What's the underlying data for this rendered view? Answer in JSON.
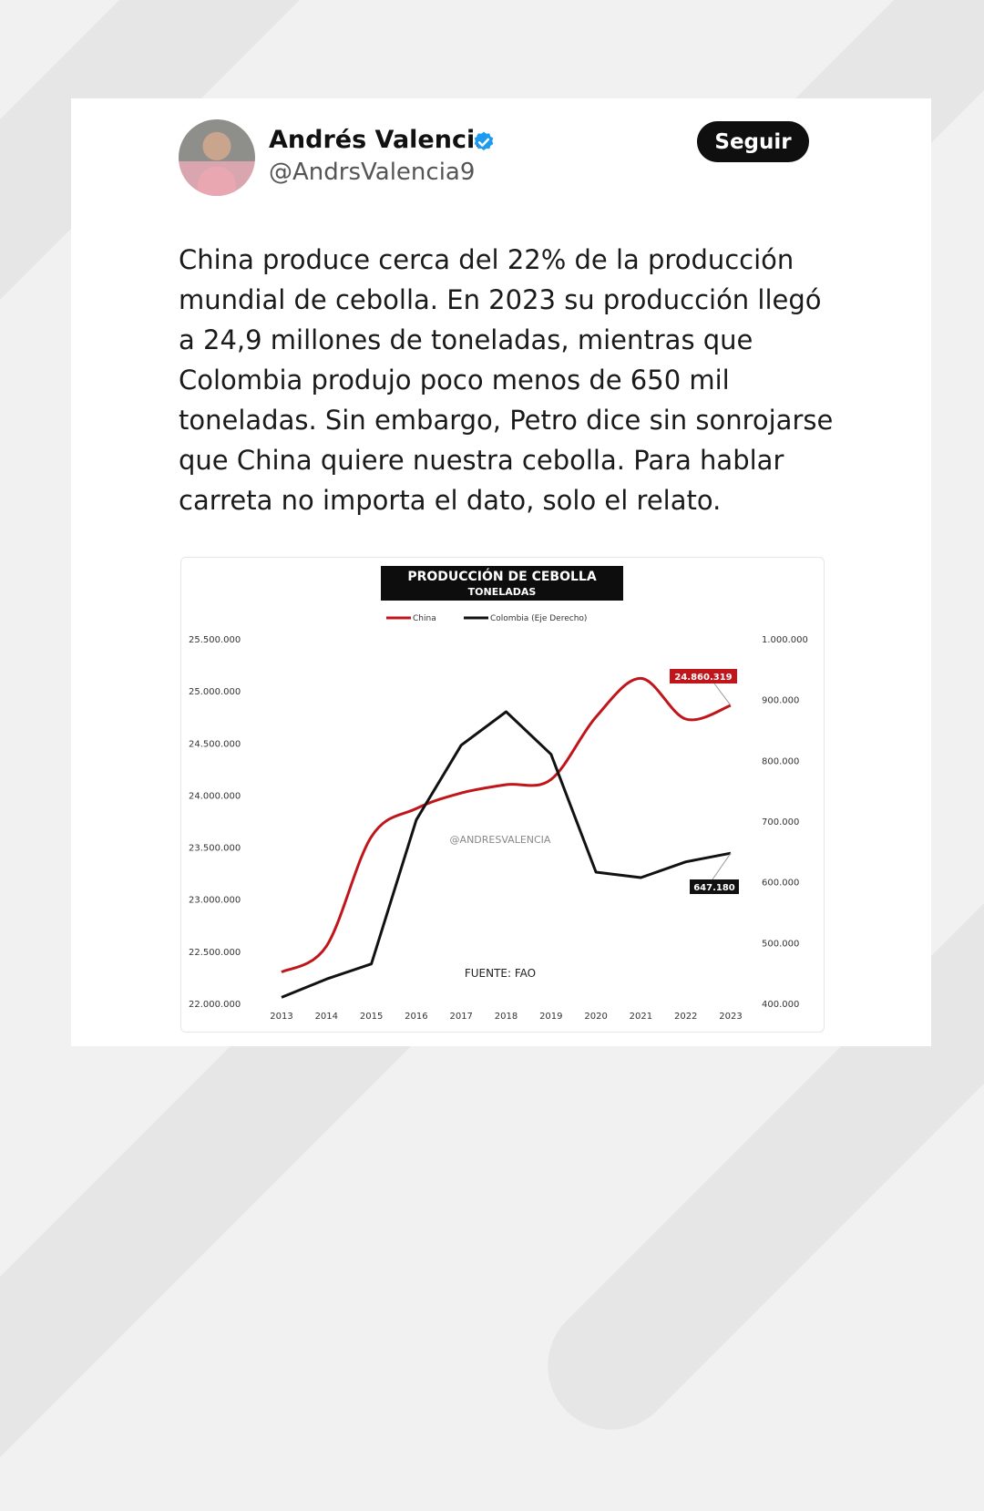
{
  "tweet": {
    "author_name": "Andrés Valencia",
    "handle": "@AndrsValencia9",
    "follow_label": "Seguir",
    "text": "China produce cerca del 22% de la producción mundial de cebolla. En 2023 su producción llegó a 24,9 millones de toneladas, mientras que Colombia produjo poco menos de 650 mil toneladas. Sin embargo, Petro dice sin sonrojarse que China quiere nuestra cebolla. Para hablar carreta no importa el dato, solo el relato.",
    "verified_icon": "verified-badge-icon",
    "verified_color": "#1d9bf0"
  },
  "chart_data": {
    "type": "line",
    "title": "PRODUCCIÓN DE CEBOLLA",
    "subtitle": "TONELADAS",
    "watermark": "@ANDRESVALENCIA",
    "source": "FUENTE: FAO",
    "x": [
      "2013",
      "2014",
      "2015",
      "2016",
      "2017",
      "2018",
      "2019",
      "2020",
      "2021",
      "2022",
      "2023"
    ],
    "y_left_ticks": [
      "25.500.000",
      "25.000.000",
      "24.500.000",
      "24.000.000",
      "23.500.000",
      "23.000.000",
      "22.500.000",
      "22.000.000"
    ],
    "y_left_range": [
      22000000,
      25500000
    ],
    "y_right_ticks": [
      "1.000.000",
      "900.000",
      "800.000",
      "700.000",
      "600.000",
      "500.000",
      "400.000"
    ],
    "y_right_range": [
      400000,
      1000000
    ],
    "series": [
      {
        "name": "China",
        "axis": "left",
        "color": "#c0161b",
        "values": [
          22300000,
          22550000,
          23600000,
          23870000,
          24020000,
          24100000,
          24150000,
          24750000,
          25120000,
          24730000,
          24860319
        ]
      },
      {
        "name": "Colombia (Eje Derecho)",
        "axis": "right",
        "color": "#111111",
        "values": [
          410000,
          440000,
          465000,
          702000,
          825000,
          880000,
          810000,
          616000,
          607000,
          633000,
          647180
        ]
      }
    ],
    "annotations": [
      {
        "label": "24.860.319",
        "series": "China",
        "x": "2023",
        "bg": "#c0161b"
      },
      {
        "label": "647.180",
        "series": "Colombia (Eje Derecho)",
        "x": "2023",
        "bg": "#111111"
      }
    ],
    "grid": false,
    "legend": "top"
  }
}
